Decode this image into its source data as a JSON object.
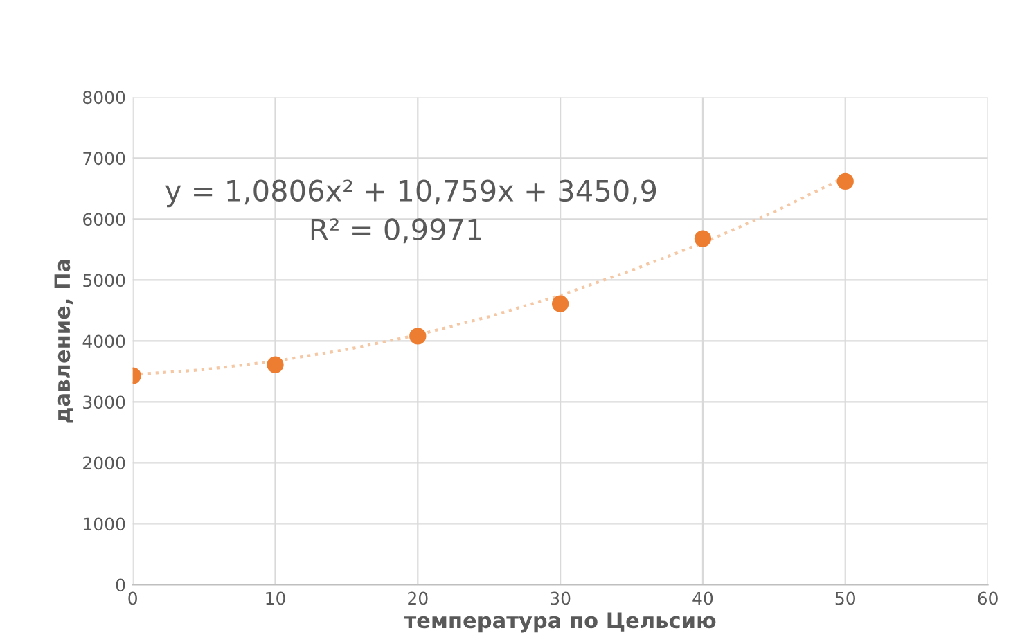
{
  "chart_data": {
    "type": "scatter",
    "xlabel": "температура по Цельсию",
    "ylabel": "давление, Па",
    "x": [
      0,
      10,
      20,
      30,
      40,
      50
    ],
    "series": [
      {
        "color": "#ed7d31",
        "values": [
          3430,
          3610,
          4080,
          4610,
          5680,
          6620
        ],
        "marker": "circle"
      },
      {
        "type": "line",
        "color": "#f4c7a5",
        "line_style": "dotted",
        "marker": "none",
        "x": [
          0,
          5,
          10,
          15,
          20,
          25,
          30,
          35,
          40,
          45,
          50
        ],
        "values": [
          3450,
          3530,
          3670,
          3860,
          4100,
          4400,
          4750,
          5160,
          5610,
          6120,
          6690
        ]
      }
    ],
    "annotations": [
      "y = 1,0806x² + 10,759x + 3450,9",
      "R² = 0,9971"
    ],
    "xlim": [
      0,
      60
    ],
    "xticks": [
      0,
      10,
      20,
      30,
      40,
      50,
      60
    ],
    "ylim": [
      0,
      8000
    ],
    "yticks": [
      0,
      1000,
      2000,
      3000,
      4000,
      5000,
      6000,
      7000,
      8000
    ],
    "grid": true,
    "legend": false
  }
}
